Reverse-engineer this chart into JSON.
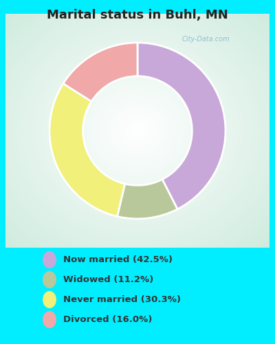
{
  "title": "Marital status in Buhl, MN",
  "categories": [
    "Now married (42.5%)",
    "Widowed (11.2%)",
    "Never married (30.3%)",
    "Divorced (16.0%)"
  ],
  "values": [
    42.5,
    11.2,
    30.3,
    16.0
  ],
  "colors": [
    "#c8a8d8",
    "#b8c89a",
    "#f0f07a",
    "#f0a8a8"
  ],
  "background_color": "#00eeff",
  "chart_bg_color": "#c8e8d8",
  "legend_text_color": "#333333",
  "title_color": "#222222",
  "watermark": "City-Data.com",
  "figsize": [
    4.0,
    5.0
  ],
  "dpi": 100,
  "startangle": 90
}
